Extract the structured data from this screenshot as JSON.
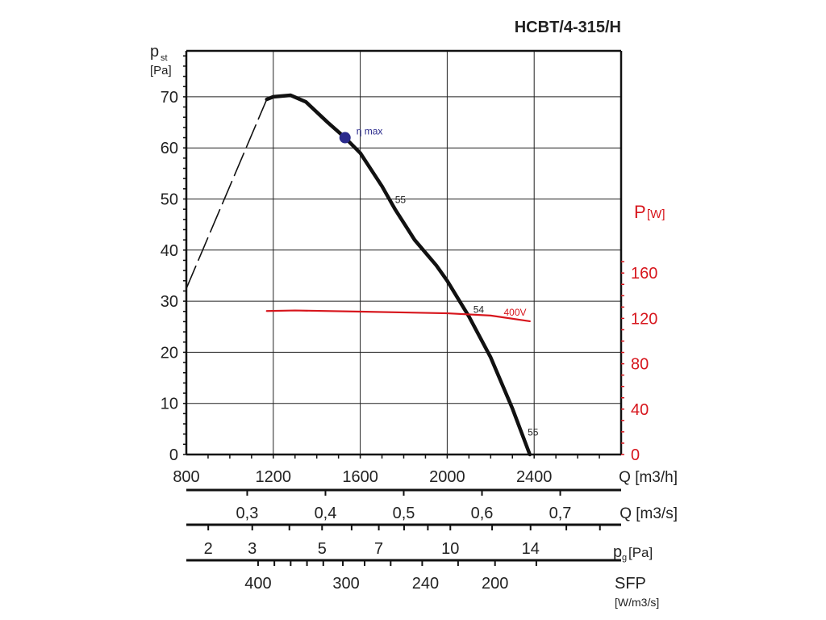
{
  "chart_data": {
    "type": "line",
    "title": "HCBT/4-315/H",
    "ylabel": "p",
    "ylabel_sub": "st",
    "ylabel_unit": "[Pa]",
    "y2label": "P",
    "y2label_unit": "[W]",
    "xlim": [
      800,
      2800
    ],
    "ylim": [
      0,
      79
    ],
    "y2lim": [
      0,
      180
    ],
    "grid": true,
    "x_ticks": [
      800,
      1200,
      1600,
      2000,
      2400
    ],
    "x_tick_labels": [
      "800",
      "1200",
      "1600",
      "2000",
      "2400"
    ],
    "xlabel": "Q [m3/h]",
    "y_ticks": [
      0,
      10,
      20,
      30,
      40,
      50,
      60,
      70
    ],
    "y2_ticks": [
      0,
      40,
      80,
      120,
      160
    ],
    "series": [
      {
        "name": "pressure (extrapolated)",
        "color": "#111111",
        "dashed": true,
        "x": [
          800,
          1170
        ],
        "y": [
          32.5,
          69.5
        ]
      },
      {
        "name": "pressure",
        "color": "#111111",
        "x": [
          1170,
          1200,
          1280,
          1350,
          1450,
          1530,
          1600,
          1700,
          1760,
          1850,
          1950,
          2000,
          2100,
          2200,
          2300,
          2380
        ],
        "y": [
          69.5,
          70,
          70.3,
          69,
          65,
          62,
          59,
          52.5,
          48,
          42,
          37,
          34,
          27,
          19,
          9,
          0
        ]
      },
      {
        "name": "400V",
        "color": "#d7161d",
        "axis": "right",
        "x": [
          1170,
          1300,
          1600,
          2000,
          2200,
          2380
        ],
        "y": [
          126.5,
          127,
          126,
          124.5,
          122.5,
          117.5
        ]
      }
    ],
    "annotations": [
      {
        "text": "η max",
        "x": 1530,
        "y": 62,
        "color": "#2a2a8c",
        "marker": true
      },
      {
        "text": "55",
        "x": 1760,
        "y": 50
      },
      {
        "text": "54",
        "x": 2120,
        "y": 28.5
      },
      {
        "text": "55",
        "x": 2370,
        "y": 4.5
      },
      {
        "text": "400V",
        "x": 2260,
        "y": 28,
        "color": "#d7161d"
      }
    ],
    "secondary_scales": [
      {
        "label": "Q [m3/s]",
        "ticks_q": [
          1080,
          1440,
          1800,
          2160,
          2520
        ],
        "labels": [
          "0,3",
          "0,4",
          "0,5",
          "0,6",
          "0,7"
        ]
      },
      {
        "label": "pg[Pa]",
        "label_main": "p",
        "label_sub": "g",
        "label_unit": "[Pa]",
        "values": [
          2,
          3,
          5,
          7,
          10,
          14
        ],
        "labels": [
          "2",
          "3",
          "5",
          "7",
          "10",
          "14"
        ],
        "minor_values": [
          2,
          3,
          4,
          5,
          6,
          7,
          8,
          9,
          10,
          12,
          14,
          16,
          18
        ]
      },
      {
        "label": "SFP",
        "unit": "[W/m3/s]",
        "label_q": [
          1130,
          1535,
          1900,
          2220
        ],
        "labels": [
          "400",
          "300",
          "240",
          "200"
        ],
        "ticks_q": [
          1130,
          1205,
          1280,
          1355,
          1430,
          1520,
          1620,
          1740,
          1885,
          2050,
          2220,
          2410
        ]
      }
    ]
  }
}
